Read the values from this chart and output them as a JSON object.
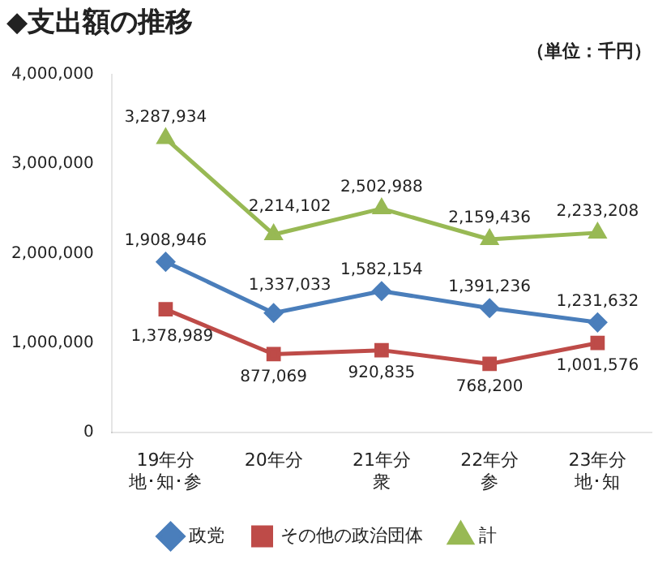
{
  "chart_data": {
    "type": "line",
    "title": "◆支出額の推移",
    "annotations": [
      "（単位：千円）"
    ],
    "categories": [
      "19年分地･知･参",
      "20年分",
      "21年分衆",
      "22年分参",
      "23年分地･知"
    ],
    "series": [
      {
        "name": "政党",
        "color": "#4a7ebb",
        "marker": "diamond",
        "values": [
          1908946,
          1337033,
          1582154,
          1391236,
          1231632
        ],
        "value_labels": [
          "1,908,946",
          "1,337,033",
          "1,582,154",
          "1,391,236",
          "1,231,632"
        ]
      },
      {
        "name": "その他の政治団体",
        "color": "#be4b48",
        "marker": "square",
        "values": [
          1378989,
          877069,
          920835,
          768200,
          1001576
        ],
        "value_labels": [
          "1,378,989",
          "877,069",
          "920,835",
          "768,200",
          "1,001,576"
        ]
      },
      {
        "name": "計",
        "color": "#98b954",
        "marker": "triangle",
        "values": [
          3287934,
          2214102,
          2502988,
          2159436,
          2233208
        ],
        "value_labels": [
          "3,287,934",
          "2,214,102",
          "2,502,988",
          "2,159,436",
          "2,233,208"
        ]
      }
    ],
    "ylim": [
      0,
      4000000
    ],
    "yticks": [
      {
        "value": 0,
        "label": "0"
      },
      {
        "value": 1000000,
        "label": "1,000,000"
      },
      {
        "value": 2000000,
        "label": "2,000,000"
      },
      {
        "value": 3000000,
        "label": "3,000,000"
      },
      {
        "value": 4000000,
        "label": "4,000,000"
      }
    ],
    "grid": false,
    "legend": "bottom"
  }
}
